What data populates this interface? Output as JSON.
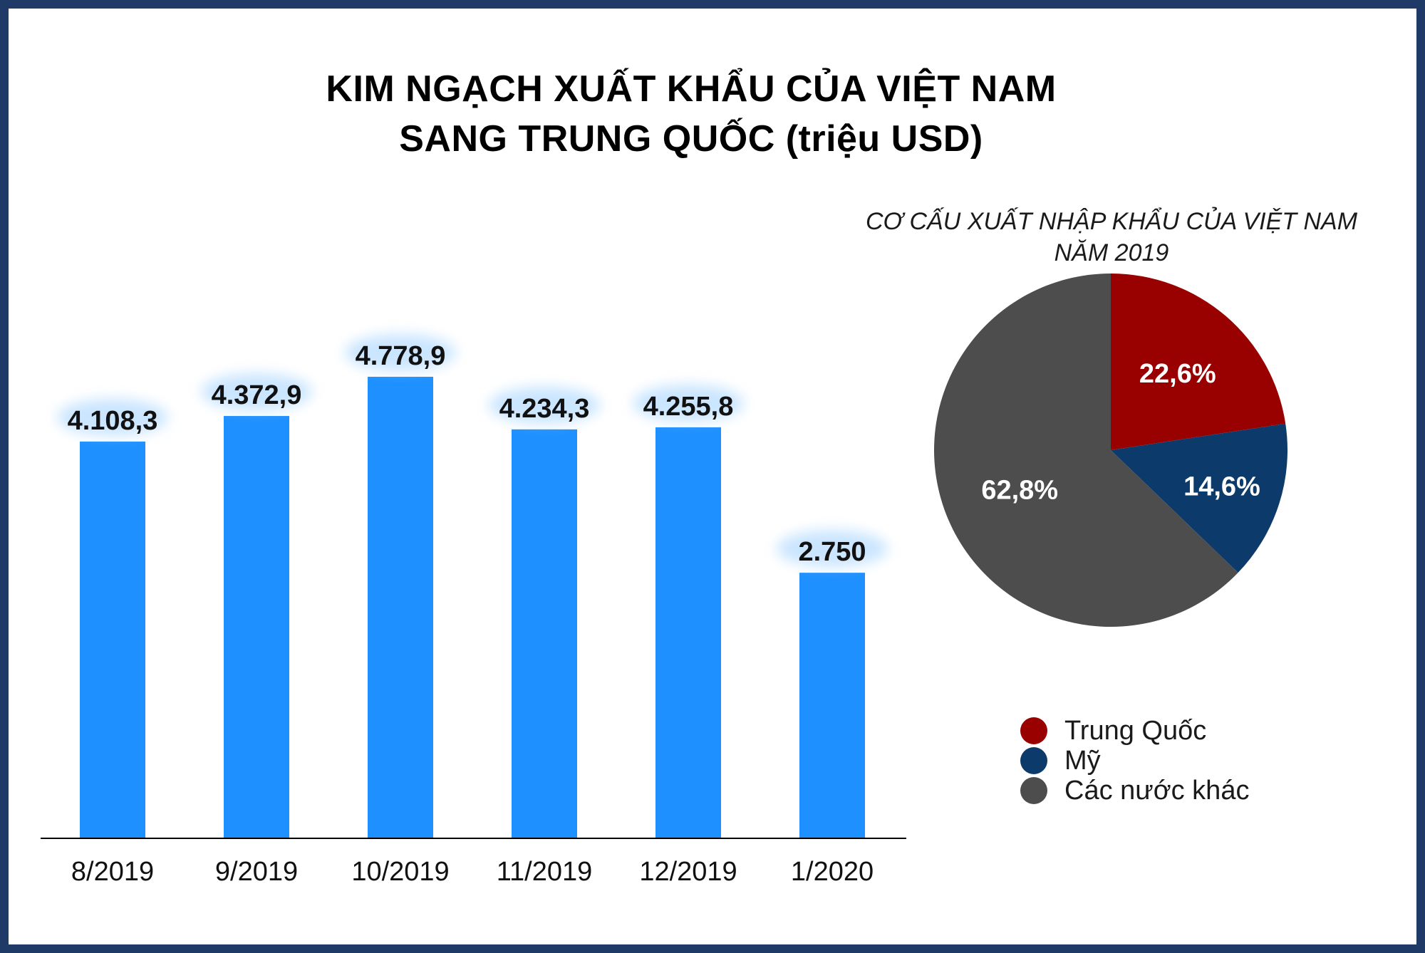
{
  "title": {
    "line1": "KIM NGẠCH XUẤT KHẨU CỦA VIỆT NAM",
    "line2": "SANG TRUNG QUỐC (triệu USD)"
  },
  "chart_data": [
    {
      "type": "bar",
      "categories": [
        "8/2019",
        "9/2019",
        "10/2019",
        "11/2019",
        "12/2019",
        "1/2020"
      ],
      "values": [
        4108.3,
        4372.9,
        4778.9,
        4234.3,
        4255.8,
        2750
      ],
      "data_labels": [
        "4.108,3",
        "4.372,9",
        "4.778,9",
        "4.234,3",
        "4.255,8",
        "2.750"
      ],
      "ylim": [
        0,
        5000
      ],
      "grid": false,
      "colors": {
        "bar": "#1e90ff",
        "label_glow": "#9fd0ff",
        "axis": "#000000"
      }
    },
    {
      "type": "pie",
      "title": "CƠ CẤU XUẤT NHẬP KHẨU CỦA VIỆT NAM",
      "subtitle": "NĂM 2019",
      "slices": [
        {
          "name": "Trung Quốc",
          "value": 22.6,
          "label": "22,6%",
          "color": "#990000"
        },
        {
          "name": "Mỹ",
          "value": 14.6,
          "label": "14,6%",
          "color": "#0b3a6b"
        },
        {
          "name": "Các nước khác",
          "value": 62.8,
          "label": "62,8%",
          "color": "#4d4d4d"
        }
      ],
      "legend_position": "bottom-right"
    }
  ]
}
